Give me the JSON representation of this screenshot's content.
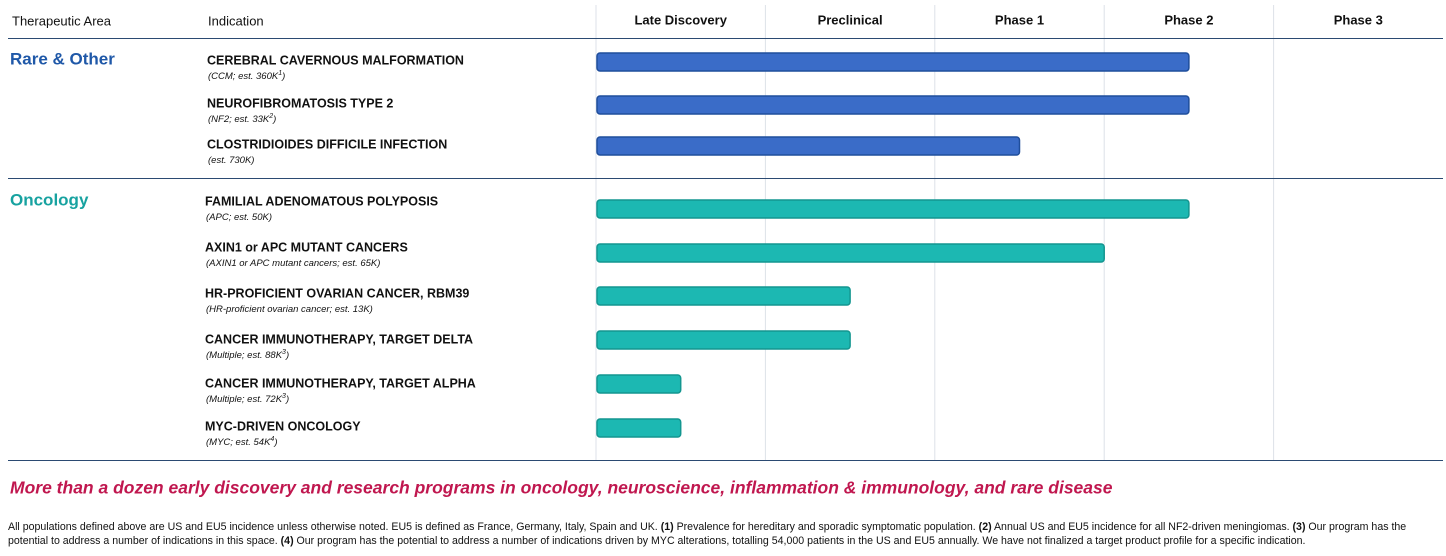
{
  "header": {
    "area": "Therapeutic Area",
    "indication": "Indication"
  },
  "pipeline": {
    "phases": [
      "Late Discovery",
      "Preclinical",
      "Phase 1",
      "Phase 2",
      "Phase 3"
    ],
    "xlim": [
      0,
      5
    ],
    "groups": [
      {
        "name": "Rare & Other",
        "color": "#3a6cc8",
        "border": "#1f4e9c",
        "title_color": "#1f58a8",
        "rows": [
          {
            "indication": "CEREBRAL CAVERNOUS MALFORMATION",
            "note": {
              "text": "(CCM; est. 360K",
              "sup": "1",
              "end": ")"
            },
            "progress": 3.5
          },
          {
            "indication": "NEUROFIBROMATOSIS TYPE 2",
            "note": {
              "text": "(NF2; est. 33K",
              "sup": "2",
              "end": ")"
            },
            "progress": 3.5
          },
          {
            "indication": "CLOSTRIDIOIDES DIFFICILE INFECTION",
            "note": {
              "text": "(est. 730K)"
            },
            "progress": 2.5
          }
        ]
      },
      {
        "name": "Oncology",
        "color": "#1cb8b2",
        "border": "#139690",
        "title_color": "#17a2a0",
        "rows": [
          {
            "indication": "FAMILIAL ADENOMATOUS POLYPOSIS",
            "note": {
              "text": "(APC; est. 50K)"
            },
            "progress": 3.5
          },
          {
            "indication": "AXIN1 or APC MUTANT CANCERS",
            "note": {
              "text": "(AXIN1 or APC mutant cancers; est. 65K)"
            },
            "progress": 3.0
          },
          {
            "indication": "HR-PROFICIENT OVARIAN CANCER, RBM39",
            "note": {
              "text": "(HR-proficient ovarian cancer; est. 13K)"
            },
            "progress": 1.5
          },
          {
            "indication": "CANCER IMMUNOTHERAPY, TARGET DELTA",
            "note": {
              "text": "(Multiple; est. 88K",
              "sup": "3",
              "end": ")"
            },
            "progress": 1.5
          },
          {
            "indication": "CANCER IMMUNOTHERAPY, TARGET ALPHA",
            "note": {
              "text": "(Multiple; est. 72K",
              "sup": "3",
              "end": ")"
            },
            "progress": 0.5
          },
          {
            "indication": "MYC-DRIVEN ONCOLOGY",
            "note": {
              "text": "(MYC; est. 54K",
              "sup": "4",
              "end": ")"
            },
            "progress": 0.5
          }
        ]
      }
    ]
  },
  "tagline": "More than a dozen early discovery and research programs in oncology, neuroscience, inflammation & immunology, and rare disease",
  "footnote": [
    {
      "text": "All populations defined above are US and EU5 incidence unless otherwise noted. EU5 is defined as France, Germany, Italy, Spain and UK. "
    },
    {
      "text": "(1)",
      "bold": true
    },
    {
      "text": " Prevalence for hereditary and sporadic symptomatic population. "
    },
    {
      "text": "(2)",
      "bold": true
    },
    {
      "text": " Annual US and EU5 incidence for all NF2-driven meningiomas. "
    },
    {
      "text": "(3)",
      "bold": true
    },
    {
      "text": " Our program has the potential to address a number of indications in this space. "
    },
    {
      "text": "(4)",
      "bold": true
    },
    {
      "text": " Our program has the potential to address a number of indications driven by MYC alterations, totalling 54,000 patients in the US and EU5 annually. We have not finalized a target product profile for a specific indication."
    }
  ]
}
